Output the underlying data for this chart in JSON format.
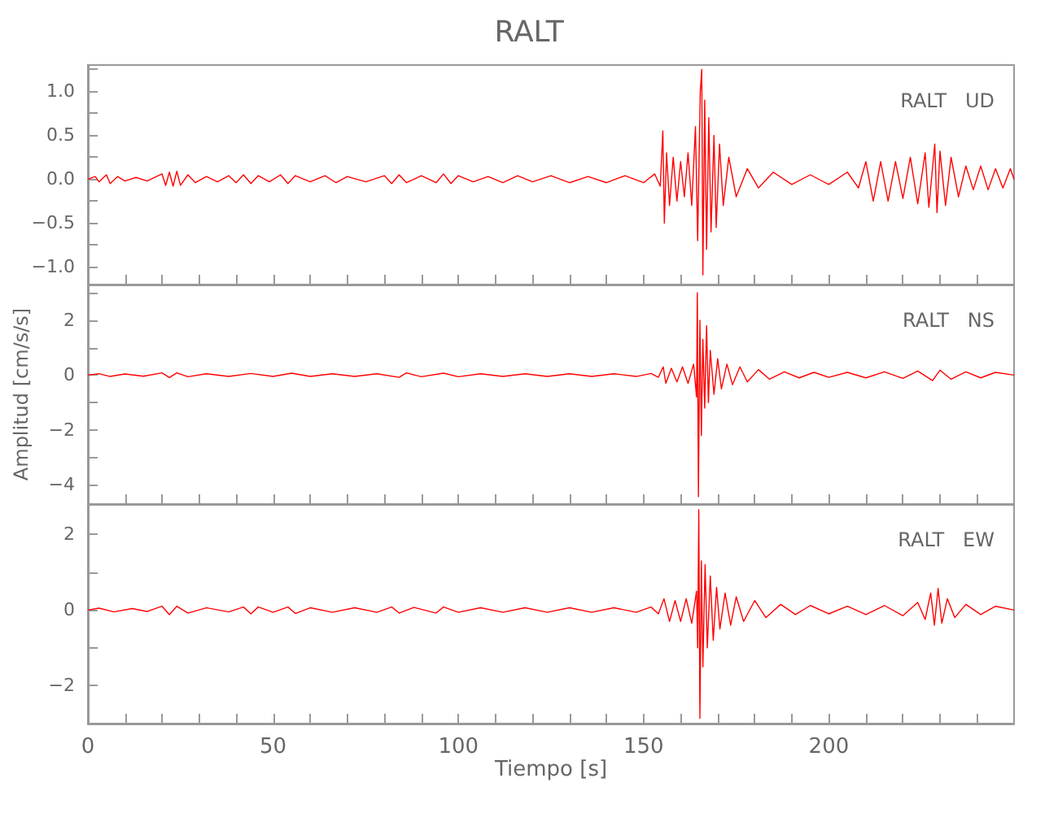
{
  "chart_data": [
    {
      "type": "line",
      "title": "RALT",
      "annotations": [
        "RALT   UD"
      ],
      "tick_labels": "y",
      "xlim": [
        0,
        250
      ],
      "xticks": [
        0,
        {
          "value": 10,
          "label": null
        },
        {
          "value": 20,
          "label": null
        },
        {
          "value": 30,
          "label": null
        },
        {
          "value": 40,
          "label": null
        },
        50,
        {
          "value": 60,
          "label": null
        },
        {
          "value": 70,
          "label": null
        },
        {
          "value": 80,
          "label": null
        },
        {
          "value": 90,
          "label": null
        },
        100,
        {
          "value": 110,
          "label": null
        },
        {
          "value": 120,
          "label": null
        },
        {
          "value": 130,
          "label": null
        },
        {
          "value": 140,
          "label": null
        },
        150,
        {
          "value": 160,
          "label": null
        },
        {
          "value": 170,
          "label": null
        },
        {
          "value": 180,
          "label": null
        },
        {
          "value": 190,
          "label": null
        },
        200,
        {
          "value": 210,
          "label": null
        },
        {
          "value": 220,
          "label": null
        },
        {
          "value": 230,
          "label": null
        },
        {
          "value": 240,
          "label": null
        }
      ],
      "ylim": [
        -1.2,
        1.3
      ],
      "yticks": [
        {
          "value": -1.0,
          "label": "−1.0"
        },
        {
          "value": -0.75,
          "label": null
        },
        {
          "value": -0.5,
          "label": "−0.5"
        },
        {
          "value": -0.25,
          "label": null
        },
        {
          "value": 0,
          "label": "0.0"
        },
        {
          "value": 0.25,
          "label": null
        },
        {
          "value": 0.5,
          "label": "0.5"
        },
        {
          "value": 0.75,
          "label": null
        },
        {
          "value": 1.0,
          "label": "1.0"
        },
        {
          "value": 1.25,
          "label": null
        }
      ],
      "series": [
        {
          "color": "#ff0000",
          "x": [
            0,
            2,
            3,
            5,
            6,
            8,
            10,
            13,
            16,
            20,
            21,
            22,
            23,
            24,
            25,
            27,
            29,
            32,
            35,
            38,
            40,
            42,
            44,
            46,
            49,
            52,
            54,
            56,
            60,
            64,
            67,
            70,
            75,
            80,
            82,
            84,
            86,
            90,
            94,
            96,
            98,
            100,
            104,
            108,
            112,
            116,
            120,
            125,
            130,
            135,
            140,
            145,
            150,
            153,
            154.5,
            155.2,
            155.6,
            156.2,
            157,
            158,
            159,
            160,
            161,
            162,
            163,
            164,
            164.6,
            165.3,
            165.7,
            166,
            166.5,
            167,
            167.6,
            168.2,
            169,
            169.6,
            170.5,
            171.5,
            173,
            175,
            178,
            181,
            185,
            190,
            195,
            200,
            205,
            208,
            210,
            212,
            214,
            216,
            218,
            220,
            222,
            224,
            226,
            227,
            228.6,
            229.2,
            230,
            231.5,
            233,
            235,
            237,
            239,
            241,
            243,
            245,
            247,
            249,
            250
          ],
          "values": [
            0,
            0.03,
            -0.03,
            0.05,
            -0.05,
            0.03,
            -0.02,
            0.02,
            -0.02,
            0.06,
            -0.07,
            0.08,
            -0.08,
            0.09,
            -0.07,
            0.05,
            -0.04,
            0.03,
            -0.03,
            0.04,
            -0.04,
            0.05,
            -0.05,
            0.04,
            -0.03,
            0.05,
            -0.05,
            0.04,
            -0.03,
            0.04,
            -0.04,
            0.03,
            -0.03,
            0.04,
            -0.05,
            0.05,
            -0.04,
            0.04,
            -0.04,
            0.06,
            -0.05,
            0.04,
            -0.03,
            0.03,
            -0.04,
            0.04,
            -0.03,
            0.04,
            -0.04,
            0.03,
            -0.04,
            0.04,
            -0.04,
            0.06,
            -0.08,
            0.55,
            -0.5,
            0.3,
            -0.3,
            0.25,
            -0.25,
            0.2,
            -0.2,
            0.3,
            -0.3,
            0.6,
            -0.7,
            1.0,
            1.25,
            -1.09,
            0.9,
            -0.8,
            0.7,
            -0.6,
            0.5,
            -0.55,
            0.4,
            -0.3,
            0.25,
            -0.2,
            0.12,
            -0.1,
            0.08,
            -0.06,
            0.05,
            -0.06,
            0.08,
            -0.1,
            0.2,
            -0.25,
            0.2,
            -0.25,
            0.2,
            -0.22,
            0.25,
            -0.28,
            0.3,
            -0.32,
            0.4,
            -0.38,
            0.32,
            -0.3,
            0.25,
            -0.2,
            0.15,
            -0.12,
            0.15,
            -0.12,
            0.12,
            -0.1,
            0.12,
            0
          ]
        }
      ]
    },
    {
      "type": "line",
      "ylabel": "Amplitud [cm/s/s]",
      "annotations": [
        "RALT   NS"
      ],
      "tick_labels": "y",
      "xlim": [
        0,
        250
      ],
      "xticks": [
        0,
        {
          "value": 10,
          "label": null
        },
        {
          "value": 20,
          "label": null
        },
        {
          "value": 30,
          "label": null
        },
        {
          "value": 40,
          "label": null
        },
        50,
        {
          "value": 60,
          "label": null
        },
        {
          "value": 70,
          "label": null
        },
        {
          "value": 80,
          "label": null
        },
        {
          "value": 90,
          "label": null
        },
        100,
        {
          "value": 110,
          "label": null
        },
        {
          "value": 120,
          "label": null
        },
        {
          "value": 130,
          "label": null
        },
        {
          "value": 140,
          "label": null
        },
        150,
        {
          "value": 160,
          "label": null
        },
        {
          "value": 170,
          "label": null
        },
        {
          "value": 180,
          "label": null
        },
        {
          "value": 190,
          "label": null
        },
        200,
        {
          "value": 210,
          "label": null
        },
        {
          "value": 220,
          "label": null
        },
        {
          "value": 230,
          "label": null
        },
        {
          "value": 240,
          "label": null
        }
      ],
      "ylim": [
        -4.7,
        3.3
      ],
      "yticks": [
        -4,
        {
          "value": -3,
          "label": null
        },
        -2,
        {
          "value": -1,
          "label": null
        },
        0,
        {
          "value": 1,
          "label": null
        },
        2,
        {
          "value": 3,
          "label": null
        }
      ],
      "series": [
        {
          "color": "#ff0000",
          "x": [
            0,
            3,
            6,
            10,
            15,
            20,
            22,
            24,
            27,
            32,
            38,
            44,
            50,
            55,
            60,
            66,
            72,
            78,
            84,
            86,
            90,
            96,
            100,
            106,
            112,
            118,
            124,
            130,
            136,
            142,
            148,
            152,
            154,
            155.3,
            156,
            157.5,
            159,
            160.5,
            162,
            163.5,
            164.3,
            164.5,
            164.8,
            165.2,
            165.6,
            166,
            166.5,
            167,
            167.5,
            168,
            169,
            170,
            171,
            172.5,
            174,
            176,
            178,
            181,
            184,
            188,
            192,
            196,
            200,
            205,
            210,
            215,
            220,
            224,
            228,
            230,
            233,
            237,
            241,
            245,
            250
          ],
          "values": [
            0,
            0.05,
            -0.05,
            0.04,
            -0.04,
            0.08,
            -0.09,
            0.08,
            -0.06,
            0.05,
            -0.05,
            0.06,
            -0.05,
            0.07,
            -0.05,
            0.05,
            -0.05,
            0.05,
            -0.08,
            0.08,
            -0.06,
            0.07,
            -0.06,
            0.05,
            -0.05,
            0.05,
            -0.05,
            0.05,
            -0.05,
            0.05,
            -0.05,
            0.06,
            -0.08,
            0.3,
            -0.3,
            0.25,
            -0.25,
            0.3,
            -0.3,
            0.4,
            -0.8,
            3.0,
            -4.43,
            2.0,
            -2.2,
            1.3,
            -1.2,
            1.8,
            -1.0,
            0.9,
            -0.7,
            0.6,
            -0.5,
            0.4,
            -0.35,
            0.3,
            -0.25,
            0.2,
            -0.15,
            0.12,
            -0.1,
            0.1,
            -0.08,
            0.1,
            -0.1,
            0.12,
            -0.12,
            0.15,
            -0.2,
            0.18,
            -0.15,
            0.12,
            -0.1,
            0.1,
            0
          ]
        }
      ]
    },
    {
      "type": "line",
      "xlabel": "Tiempo [s]",
      "annotations": [
        "RALT   EW"
      ],
      "xlim": [
        0,
        250
      ],
      "xticks": [
        0,
        {
          "value": 10,
          "label": null
        },
        {
          "value": 20,
          "label": null
        },
        {
          "value": 30,
          "label": null
        },
        {
          "value": 40,
          "label": null
        },
        50,
        {
          "value": 60,
          "label": null
        },
        {
          "value": 70,
          "label": null
        },
        {
          "value": 80,
          "label": null
        },
        {
          "value": 90,
          "label": null
        },
        100,
        {
          "value": 110,
          "label": null
        },
        {
          "value": 120,
          "label": null
        },
        {
          "value": 130,
          "label": null
        },
        {
          "value": 140,
          "label": null
        },
        150,
        {
          "value": 160,
          "label": null
        },
        {
          "value": 170,
          "label": null
        },
        {
          "value": 180,
          "label": null
        },
        {
          "value": 190,
          "label": null
        },
        200,
        {
          "value": 210,
          "label": null
        },
        {
          "value": 220,
          "label": null
        },
        {
          "value": 230,
          "label": null
        },
        {
          "value": 240,
          "label": null
        }
      ],
      "ylim": [
        -3,
        2.8
      ],
      "yticks": [
        -2,
        {
          "value": -1,
          "label": null
        },
        0,
        {
          "value": 1,
          "label": null
        },
        2
      ],
      "series": [
        {
          "color": "#ff0000",
          "x": [
            0,
            3,
            7,
            12,
            16,
            20,
            22,
            24,
            27,
            32,
            38,
            42,
            44,
            46,
            50,
            54,
            56,
            60,
            66,
            72,
            78,
            82,
            84,
            88,
            94,
            96,
            100,
            106,
            112,
            118,
            124,
            130,
            136,
            142,
            148,
            152,
            154,
            155.5,
            157,
            158.5,
            160,
            161.5,
            163,
            164.3,
            164.6,
            164.9,
            165.2,
            165.6,
            166,
            166.6,
            167.2,
            168,
            168.8,
            169.7,
            170.6,
            172,
            173.5,
            175,
            177,
            180,
            183,
            187,
            191,
            195,
            200,
            205,
            210,
            215,
            220,
            224,
            226,
            227.5,
            228.5,
            229.5,
            230.5,
            232,
            234,
            237,
            241,
            245,
            250
          ],
          "values": [
            0,
            0.05,
            -0.05,
            0.04,
            -0.04,
            0.1,
            -0.12,
            0.1,
            -0.08,
            0.06,
            -0.05,
            0.08,
            -0.1,
            0.08,
            -0.06,
            0.08,
            -0.09,
            0.06,
            -0.06,
            0.06,
            -0.06,
            0.08,
            -0.08,
            0.07,
            -0.08,
            0.08,
            -0.06,
            0.06,
            -0.06,
            0.06,
            -0.06,
            0.06,
            -0.06,
            0.06,
            -0.06,
            0.08,
            -0.1,
            0.3,
            -0.3,
            0.25,
            -0.3,
            0.3,
            -0.35,
            0.5,
            -1.0,
            2.65,
            -2.86,
            1.3,
            -1.5,
            1.2,
            -1.0,
            0.9,
            -0.8,
            0.6,
            -0.5,
            0.45,
            -0.4,
            0.35,
            -0.3,
            0.25,
            -0.2,
            0.15,
            -0.12,
            0.12,
            -0.1,
            0.1,
            -0.12,
            0.12,
            -0.15,
            0.2,
            -0.25,
            0.45,
            -0.4,
            0.57,
            -0.35,
            0.3,
            -0.2,
            0.15,
            -0.12,
            0.1,
            0
          ]
        }
      ]
    }
  ]
}
